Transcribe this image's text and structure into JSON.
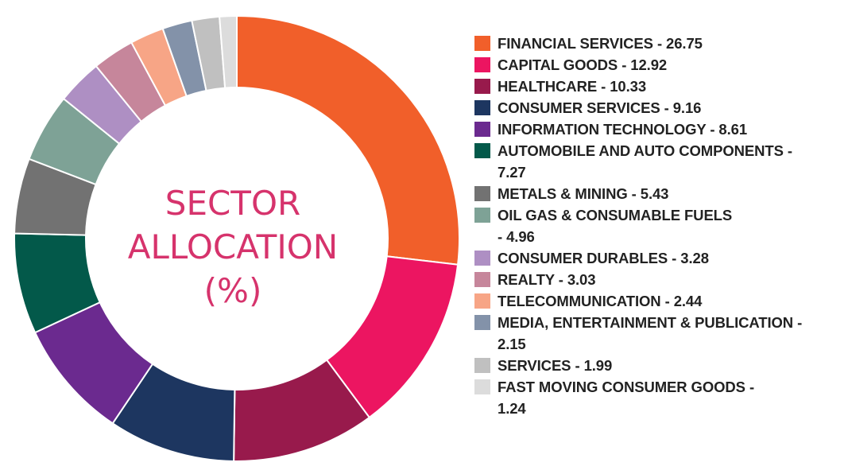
{
  "chart_data": {
    "type": "pie",
    "style": "donut",
    "title": "SECTOR ALLOCATION (%)",
    "title_lines": [
      "SECTOR",
      "ALLOCATION",
      "(%)"
    ],
    "legend_position": "right",
    "series": [
      {
        "label": "FINANCIAL SERVICES - 26.75",
        "name": "FINANCIAL SERVICES",
        "value": 26.75,
        "color": "#f15f2a"
      },
      {
        "label": "CAPITAL GOODS - 12.92",
        "name": "CAPITAL GOODS",
        "value": 12.92,
        "color": "#ec1561"
      },
      {
        "label": "HEALTHCARE - 10.33",
        "name": "HEALTHCARE",
        "value": 10.33,
        "color": "#981a4c"
      },
      {
        "label": "CONSUMER SERVICES - 9.16",
        "name": "CONSUMER SERVICES",
        "value": 9.16,
        "color": "#1d3660"
      },
      {
        "label": "INFORMATION TECHNOLOGY - 8.61",
        "name": "INFORMATION TECHNOLOGY",
        "value": 8.61,
        "color": "#6b2a8f"
      },
      {
        "label": "AUTOMOBILE AND AUTO COMPONENTS - 7.27",
        "name": "AUTOMOBILE AND AUTO COMPONENTS",
        "value": 7.27,
        "color": "#03594a"
      },
      {
        "label": "METALS & MINING - 5.43",
        "name": "METALS & MINING",
        "value": 5.43,
        "color": "#727272"
      },
      {
        "label": "OIL GAS & CONSUMABLE FUELS - 4.96",
        "name": "OIL GAS & CONSUMABLE FUELS",
        "value": 4.96,
        "color": "#7ea296"
      },
      {
        "label": "CONSUMER DURABLES - 3.28",
        "name": "CONSUMER DURABLES",
        "value": 3.28,
        "color": "#ae8fc3"
      },
      {
        "label": "REALTY - 3.03",
        "name": "REALTY",
        "value": 3.03,
        "color": "#c6869b"
      },
      {
        "label": "TELECOMMUNICATION - 2.44",
        "name": "TELECOMMUNICATION",
        "value": 2.44,
        "color": "#f7a586"
      },
      {
        "label": "MEDIA, ENTERTAINMENT & PUBLICATION - 2.15",
        "name": "MEDIA, ENTERTAINMENT & PUBLICATION",
        "value": 2.15,
        "color": "#8392a9"
      },
      {
        "label": "SERVICES - 1.99",
        "name": "SERVICES",
        "value": 1.99,
        "color": "#c0c0c0"
      },
      {
        "label": "FAST MOVING CONSUMER GOODS - 1.24",
        "name": "FAST MOVING CONSUMER GOODS",
        "value": 1.24,
        "color": "#dcdcdc"
      }
    ]
  },
  "legend_lines": [
    [
      "FINANCIAL SERVICES - 26.75"
    ],
    [
      "CAPITAL GOODS - 12.92"
    ],
    [
      "HEALTHCARE - 10.33"
    ],
    [
      "CONSUMER SERVICES - 9.16"
    ],
    [
      "INFORMATION TECHNOLOGY - 8.61"
    ],
    [
      "AUTOMOBILE AND AUTO COMPONENTS -",
      "7.27"
    ],
    [
      "METALS & MINING - 5.43"
    ],
    [
      "OIL GAS & CONSUMABLE FUELS",
      "- 4.96"
    ],
    [
      "CONSUMER DURABLES - 3.28"
    ],
    [
      "REALTY - 3.03"
    ],
    [
      "TELECOMMUNICATION - 2.44"
    ],
    [
      "MEDIA, ENTERTAINMENT & PUBLICATION -",
      "2.15"
    ],
    [
      "SERVICES - 1.99"
    ],
    [
      "FAST MOVING CONSUMER GOODS -",
      "1.24"
    ]
  ]
}
